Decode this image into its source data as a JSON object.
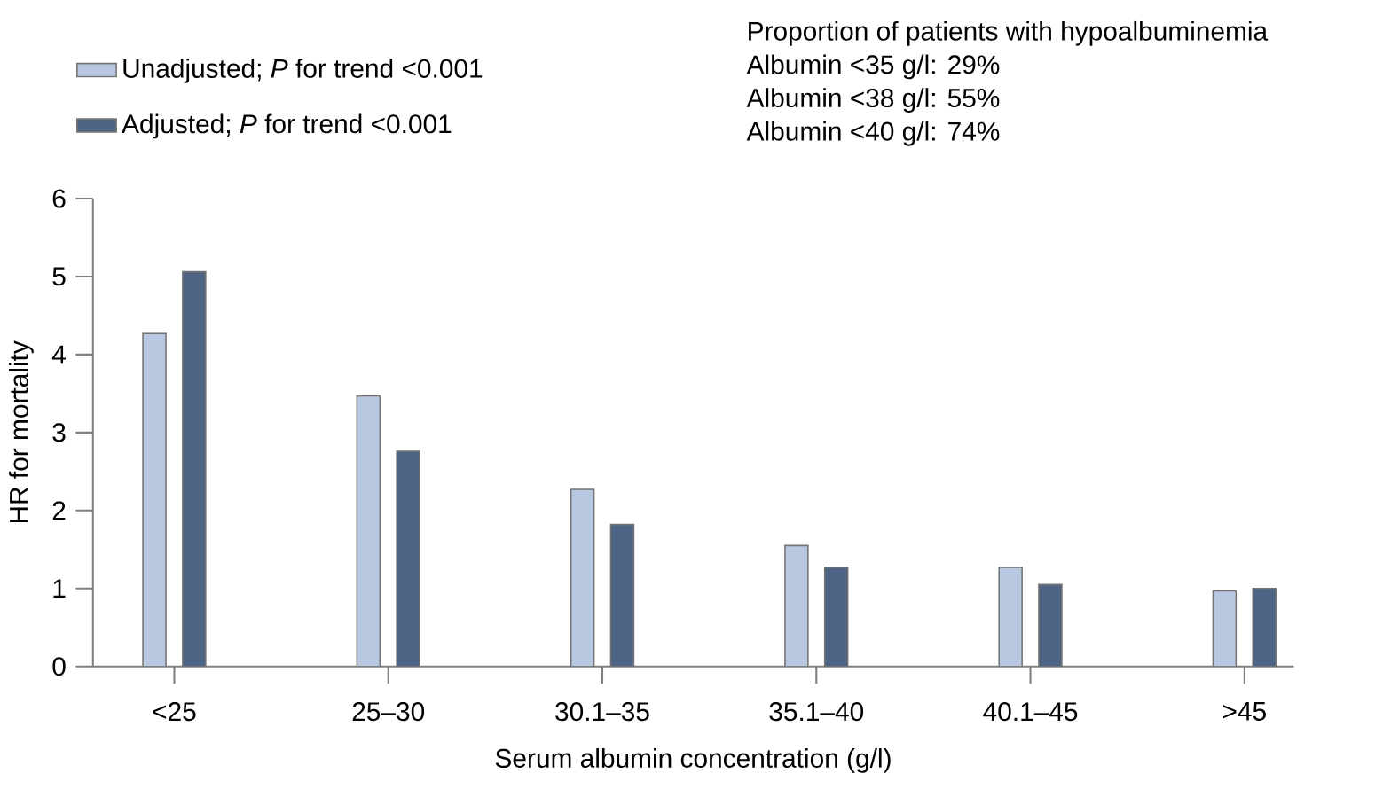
{
  "chart_data": {
    "type": "bar",
    "xlabel": "Serum albumin concentration (g/l)",
    "ylabel": "HR for mortality",
    "categories": [
      "<25",
      "25–30",
      "30.1–35",
      "35.1–40",
      "40.1–45",
      ">45"
    ],
    "series": [
      {
        "name": "Unadjusted; *P* for trend <0.001",
        "color": "#b8c8e0",
        "values": [
          4.27,
          3.47,
          2.27,
          1.55,
          1.27,
          0.97
        ]
      },
      {
        "name": "Adjusted; *P* for trend <0.001",
        "color": "#4e6484",
        "values": [
          5.06,
          2.76,
          1.82,
          1.27,
          1.05,
          1.0
        ]
      }
    ],
    "ylim": [
      0,
      6
    ],
    "yticks": [
      0,
      1,
      2,
      3,
      4,
      5,
      6
    ],
    "legend": "top left",
    "annotations": [
      "Proportion of patients with hypoalbuminemia",
      "Albumin <35 g/l: 29%",
      "Albumin <38 g/l: 55%",
      "Albumin <40 g/l: 74%"
    ]
  }
}
